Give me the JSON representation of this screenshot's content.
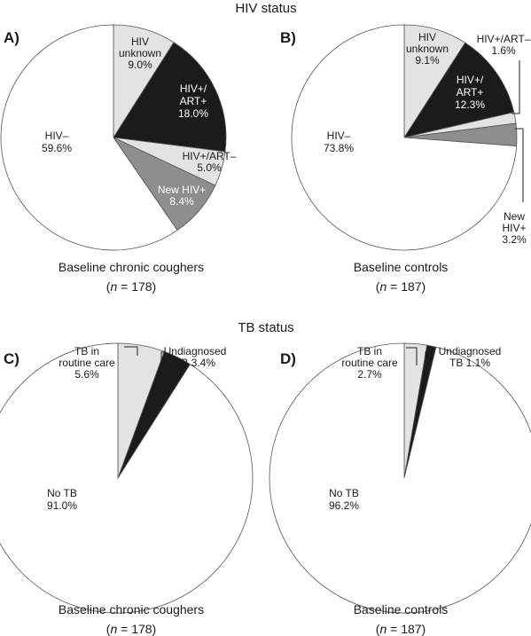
{
  "section_titles": {
    "hiv": "HIV status",
    "tb": "TB status"
  },
  "colors": {
    "white": "#ffffff",
    "light": "#e3e3e3",
    "black": "#1b1b1b",
    "grey": "#8e8e8e",
    "outline": "#555555"
  },
  "chart_data": [
    {
      "type": "pie",
      "panel": "A)",
      "caption": "Baseline chronic coughers",
      "n_prefix": "n",
      "n_suffix": " = 178)",
      "slices": [
        {
          "label": [
            "HIV",
            "unknown",
            "9.0%"
          ],
          "value": 9.0,
          "color": "light"
        },
        {
          "label": [
            "HIV+/",
            "ART+",
            "18.0%"
          ],
          "value": 18.0,
          "color": "black"
        },
        {
          "label": [
            "HIV+/ART–",
            "5.0%"
          ],
          "value": 5.0,
          "color": "light"
        },
        {
          "label": [
            "New HIV+",
            "8.4%"
          ],
          "value": 8.4,
          "color": "grey"
        },
        {
          "label": [
            "HIV–",
            "59.6%"
          ],
          "value": 59.6,
          "color": "white"
        }
      ]
    },
    {
      "type": "pie",
      "panel": "B)",
      "caption": "Baseline controls",
      "n_prefix": "n",
      "n_suffix": " = 187)",
      "slices": [
        {
          "label": [
            "HIV",
            "unknown",
            "9.1%"
          ],
          "value": 9.1,
          "color": "light"
        },
        {
          "label": [
            "HIV+/",
            "ART+",
            "12.3%"
          ],
          "value": 12.3,
          "color": "black"
        },
        {
          "label": [
            "HIV+/ART–",
            "1.6%"
          ],
          "value": 1.6,
          "color": "light"
        },
        {
          "label": [
            "New",
            "HIV+",
            "3.2%"
          ],
          "value": 3.2,
          "color": "grey"
        },
        {
          "label": [
            "HIV–",
            "73.8%"
          ],
          "value": 73.8,
          "color": "white"
        }
      ]
    },
    {
      "type": "pie",
      "panel": "C)",
      "caption": "Baseline chronic coughers",
      "n_prefix": "n",
      "n_suffix": " = 178)",
      "slices": [
        {
          "label": [
            "TB in",
            "routine care",
            "5.6%"
          ],
          "value": 5.6,
          "color": "light"
        },
        {
          "label": [
            "Undiagnosed",
            "TB 3.4%"
          ],
          "value": 3.4,
          "color": "black"
        },
        {
          "label": [
            "No TB",
            "91.0%"
          ],
          "value": 91.0,
          "color": "white"
        }
      ]
    },
    {
      "type": "pie",
      "panel": "D)",
      "caption": "Baseline controls",
      "n_prefix": "n",
      "n_suffix": " = 187)",
      "slices": [
        {
          "label": [
            "TB in",
            "routine care",
            "2.7%"
          ],
          "value": 2.7,
          "color": "light"
        },
        {
          "label": [
            "Undiagnosed",
            "TB 1.1%"
          ],
          "value": 1.1,
          "color": "black"
        },
        {
          "label": [
            "No TB",
            "96.2%"
          ],
          "value": 96.2,
          "color": "white"
        }
      ]
    }
  ]
}
